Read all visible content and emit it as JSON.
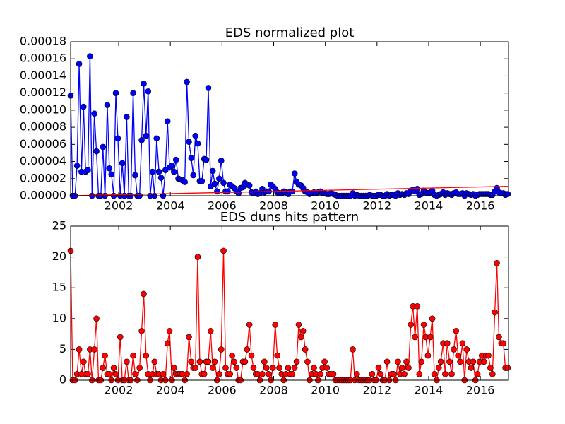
{
  "chart_data": [
    {
      "type": "line",
      "title": "EDS normalized plot",
      "x": [
        2000.14,
        2000.22,
        2000.31,
        2000.39,
        2000.47,
        2000.56,
        2000.64,
        2000.72,
        2000.81,
        2000.89,
        2000.97,
        2001.06,
        2001.14,
        2001.22,
        2001.31,
        2001.39,
        2001.47,
        2001.56,
        2001.64,
        2001.72,
        2001.81,
        2001.89,
        2001.97,
        2002.06,
        2002.14,
        2002.22,
        2002.31,
        2002.39,
        2002.47,
        2002.56,
        2002.64,
        2002.72,
        2002.81,
        2002.89,
        2002.97,
        2003.06,
        2003.14,
        2003.22,
        2003.31,
        2003.39,
        2003.47,
        2003.56,
        2003.64,
        2003.72,
        2003.81,
        2003.89,
        2003.97,
        2004.06,
        2004.14,
        2004.22,
        2004.31,
        2004.39,
        2004.47,
        2004.56,
        2004.64,
        2004.72,
        2004.81,
        2004.89,
        2004.97,
        2005.06,
        2005.14,
        2005.22,
        2005.31,
        2005.39,
        2005.47,
        2005.56,
        2005.64,
        2005.72,
        2005.81,
        2005.89,
        2005.97,
        2006.06,
        2006.14,
        2006.22,
        2006.31,
        2006.39,
        2006.47,
        2006.56,
        2006.64,
        2006.72,
        2006.81,
        2006.89,
        2006.97,
        2007.06,
        2007.14,
        2007.22,
        2007.31,
        2007.39,
        2007.47,
        2007.56,
        2007.64,
        2007.72,
        2007.81,
        2007.89,
        2007.97,
        2008.06,
        2008.14,
        2008.22,
        2008.31,
        2008.39,
        2008.47,
        2008.56,
        2008.64,
        2008.72,
        2008.81,
        2008.89,
        2008.97,
        2009.06,
        2009.14,
        2009.22,
        2009.31,
        2009.39,
        2009.47,
        2009.56,
        2009.64,
        2009.72,
        2009.81,
        2009.89,
        2009.97,
        2010.06,
        2010.14,
        2010.22,
        2010.31,
        2010.39,
        2010.47,
        2010.56,
        2010.64,
        2010.72,
        2010.81,
        2010.89,
        2010.97,
        2011.06,
        2011.14,
        2011.22,
        2011.31,
        2011.39,
        2011.47,
        2011.56,
        2011.64,
        2011.72,
        2011.81,
        2011.89,
        2011.97,
        2012.06,
        2012.14,
        2012.22,
        2012.31,
        2012.39,
        2012.47,
        2012.56,
        2012.64,
        2012.72,
        2012.81,
        2012.89,
        2012.97,
        2013.06,
        2013.14,
        2013.22,
        2013.31,
        2013.39,
        2013.47,
        2013.56,
        2013.64,
        2013.72,
        2013.81,
        2013.89,
        2013.97,
        2014.06,
        2014.14,
        2014.22,
        2014.31,
        2014.39,
        2014.47,
        2014.56,
        2014.64,
        2014.72,
        2014.81,
        2014.89,
        2014.97,
        2015.06,
        2015.14,
        2015.22,
        2015.31,
        2015.39,
        2015.47,
        2015.56,
        2015.64,
        2015.72,
        2015.81,
        2015.89,
        2015.97,
        2016.06,
        2016.14,
        2016.22,
        2016.31,
        2016.39,
        2016.47,
        2016.56,
        2016.64,
        2016.72,
        2016.81,
        2016.89,
        2016.97,
        2017.06
      ],
      "xlim": [
        2000.14,
        2017.09
      ],
      "xticks": [
        2002,
        2004,
        2006,
        2008,
        2010,
        2012,
        2014,
        2016
      ],
      "ylim": [
        0,
        0.00018
      ],
      "yticks": [
        {
          "value": 0,
          "label": "0.00000"
        },
        {
          "value": 2e-05,
          "label": "0.00002"
        },
        {
          "value": 4e-05,
          "label": "0.00004"
        },
        {
          "value": 6e-05,
          "label": "0.00006"
        },
        {
          "value": 8e-05,
          "label": "0.00008"
        },
        {
          "value": 0.0001,
          "label": "0.00010"
        },
        {
          "value": 0.00012,
          "label": "0.00012"
        },
        {
          "value": 0.00014,
          "label": "0.00014"
        },
        {
          "value": 0.00016,
          "label": "0.00016"
        },
        {
          "value": 0.00018,
          "label": "0.00018"
        }
      ],
      "series": [
        {
          "color": "#0000ff",
          "marker": true,
          "values": [
            0.000117,
            0,
            0,
            3.5e-05,
            0.000154,
            2.8e-05,
            0.000104,
            2.8e-05,
            3e-05,
            0.000163,
            0,
            9.6e-05,
            5.2e-05,
            0,
            0,
            5.7e-05,
            0,
            0.000106,
            3.2e-05,
            2.5e-05,
            0,
            0.00012,
            6.7e-05,
            0,
            3.8e-05,
            0,
            9.2e-05,
            0,
            0,
            0.00012,
            2.4e-05,
            0,
            0,
            6.5e-05,
            0.000131,
            7e-05,
            0.000122,
            0,
            2.8e-05,
            0,
            6.7e-05,
            2.8e-05,
            2.1e-05,
            0,
            3e-05,
            8.7e-05,
            3.3e-05,
            3.5e-05,
            2.8e-05,
            4.2e-05,
            2e-05,
            1.9e-05,
            1.8e-05,
            1.6e-05,
            0.000133,
            6.3e-05,
            4.4e-05,
            2.4e-05,
            7e-05,
            6.1e-05,
            1.7e-05,
            1.7e-05,
            4.3e-05,
            4.2e-05,
            0.000126,
            1.1e-05,
            2.9e-05,
            1.4e-05,
            5e-06,
            2e-05,
            4.1e-05,
            1.5e-05,
            5e-06,
            5e-06,
            1.3e-05,
            1.1e-05,
            9e-06,
            5e-06,
            3e-06,
            9e-06,
            1e-05,
            1.5e-05,
            1.3e-05,
            1.2e-05,
            4e-06,
            3e-06,
            5e-06,
            2e-06,
            3e-06,
            8e-06,
            4e-06,
            5e-06,
            5e-06,
            1.3e-05,
            1.1e-05,
            8e-06,
            4e-06,
            3e-06,
            3e-06,
            5e-06,
            4e-06,
            2e-06,
            5e-06,
            5e-06,
            2.6e-05,
            1.6e-05,
            1.3e-05,
            1.2e-05,
            9e-06,
            5e-06,
            4e-06,
            2e-06,
            3e-06,
            4e-06,
            3e-06,
            4e-06,
            5e-06,
            3e-06,
            3e-06,
            2e-06,
            2e-06,
            3e-06,
            2e-06,
            1e-06,
            0,
            0,
            0,
            0,
            0,
            0,
            0,
            3e-06,
            0,
            1e-06,
            0,
            0,
            0,
            0,
            0,
            1e-06,
            0,
            0,
            0,
            1e-06,
            1e-06,
            0,
            0,
            2e-06,
            0,
            1e-06,
            1e-06,
            0,
            3e-06,
            1e-06,
            2e-06,
            1e-06,
            3e-06,
            2e-06,
            6e-06,
            7e-06,
            5e-06,
            8e-06,
            1e-06,
            2e-06,
            6e-06,
            4e-06,
            3e-06,
            4e-06,
            6e-06,
            1e-06,
            0,
            1e-06,
            2e-06,
            4e-06,
            1e-06,
            3e-06,
            2e-06,
            1e-06,
            3e-06,
            4e-06,
            2e-06,
            2e-06,
            3e-06,
            0,
            3e-06,
            2e-06,
            1e-06,
            2e-06,
            0,
            1e-06,
            2e-06,
            2e-06,
            2e-06,
            2e-06,
            2e-06,
            1e-06,
            1e-06,
            5e-06,
            9e-06,
            4e-06,
            3e-06,
            3e-06,
            1e-06,
            2e-06
          ]
        },
        {
          "color": "#ff0000",
          "marker": false,
          "x": [
            2000.14,
            2017.09
          ],
          "values": [
            0,
            1.1e-05
          ]
        }
      ]
    },
    {
      "type": "line",
      "title": "EDS duns hits pattern",
      "x": [
        2000.14,
        2000.22,
        2000.31,
        2000.39,
        2000.47,
        2000.56,
        2000.64,
        2000.72,
        2000.81,
        2000.89,
        2000.97,
        2001.06,
        2001.14,
        2001.22,
        2001.31,
        2001.39,
        2001.47,
        2001.56,
        2001.64,
        2001.72,
        2001.81,
        2001.89,
        2001.97,
        2002.06,
        2002.14,
        2002.22,
        2002.31,
        2002.39,
        2002.47,
        2002.56,
        2002.64,
        2002.72,
        2002.81,
        2002.89,
        2002.97,
        2003.06,
        2003.14,
        2003.22,
        2003.31,
        2003.39,
        2003.47,
        2003.56,
        2003.64,
        2003.72,
        2003.81,
        2003.89,
        2003.97,
        2004.06,
        2004.14,
        2004.22,
        2004.31,
        2004.39,
        2004.47,
        2004.56,
        2004.64,
        2004.72,
        2004.81,
        2004.89,
        2004.97,
        2005.06,
        2005.14,
        2005.22,
        2005.31,
        2005.39,
        2005.47,
        2005.56,
        2005.64,
        2005.72,
        2005.81,
        2005.89,
        2005.97,
        2006.06,
        2006.14,
        2006.22,
        2006.31,
        2006.39,
        2006.47,
        2006.56,
        2006.64,
        2006.72,
        2006.81,
        2006.89,
        2006.97,
        2007.06,
        2007.14,
        2007.22,
        2007.31,
        2007.39,
        2007.47,
        2007.56,
        2007.64,
        2007.72,
        2007.81,
        2007.89,
        2007.97,
        2008.06,
        2008.14,
        2008.22,
        2008.31,
        2008.39,
        2008.47,
        2008.56,
        2008.64,
        2008.72,
        2008.81,
        2008.89,
        2008.97,
        2009.06,
        2009.14,
        2009.22,
        2009.31,
        2009.39,
        2009.47,
        2009.56,
        2009.64,
        2009.72,
        2009.81,
        2009.89,
        2009.97,
        2010.06,
        2010.14,
        2010.22,
        2010.31,
        2010.39,
        2010.47,
        2010.56,
        2010.64,
        2010.72,
        2010.81,
        2010.89,
        2010.97,
        2011.06,
        2011.14,
        2011.22,
        2011.31,
        2011.39,
        2011.47,
        2011.56,
        2011.64,
        2011.72,
        2011.81,
        2011.89,
        2011.97,
        2012.06,
        2012.14,
        2012.22,
        2012.31,
        2012.39,
        2012.47,
        2012.56,
        2012.64,
        2012.72,
        2012.81,
        2012.89,
        2012.97,
        2013.06,
        2013.14,
        2013.22,
        2013.31,
        2013.39,
        2013.47,
        2013.56,
        2013.64,
        2013.72,
        2013.81,
        2013.89,
        2013.97,
        2014.06,
        2014.14,
        2014.22,
        2014.31,
        2014.39,
        2014.47,
        2014.56,
        2014.64,
        2014.72,
        2014.81,
        2014.89,
        2014.97,
        2015.06,
        2015.14,
        2015.22,
        2015.31,
        2015.39,
        2015.47,
        2015.56,
        2015.64,
        2015.72,
        2015.81,
        2015.89,
        2015.97,
        2016.06,
        2016.14,
        2016.22,
        2016.31,
        2016.39,
        2016.47,
        2016.56,
        2016.64,
        2016.72,
        2016.81,
        2016.89,
        2016.97,
        2017.06
      ],
      "xlim": [
        2000.14,
        2017.09
      ],
      "xticks": [
        2002,
        2004,
        2006,
        2008,
        2010,
        2012,
        2014,
        2016
      ],
      "ylim": [
        0,
        25
      ],
      "yticks": [
        0,
        5,
        10,
        15,
        20,
        25
      ],
      "series": [
        {
          "color": "#ff0000",
          "marker": true,
          "values": [
            21,
            0,
            0,
            1,
            5,
            1,
            3,
            1,
            1,
            5,
            0,
            5,
            10,
            0,
            0,
            2,
            4,
            1,
            1,
            0,
            2,
            1,
            0,
            7,
            0,
            0,
            3,
            0,
            0,
            4,
            1,
            0,
            2,
            8,
            14,
            4,
            1,
            0,
            1,
            3,
            1,
            1,
            0,
            1,
            0,
            6,
            8,
            0,
            2,
            1,
            1,
            1,
            1,
            0,
            1,
            7,
            3,
            2,
            2,
            20,
            3,
            1,
            1,
            3,
            3,
            8,
            2,
            3,
            0,
            1,
            5,
            21,
            2,
            1,
            1,
            4,
            3,
            2,
            0,
            0,
            3,
            3,
            5,
            9,
            4,
            2,
            1,
            1,
            0,
            1,
            3,
            2,
            1,
            0,
            2,
            9,
            4,
            2,
            1,
            0,
            1,
            2,
            1,
            1,
            2,
            3,
            9,
            7,
            8,
            5,
            3,
            0,
            1,
            2,
            1,
            0,
            1,
            2,
            3,
            2,
            1,
            1,
            1,
            0,
            0,
            0,
            0,
            0,
            0,
            0,
            0,
            5,
            0,
            1,
            0,
            0,
            0,
            0,
            0,
            0,
            1,
            0,
            0,
            2,
            1,
            0,
            0,
            3,
            0,
            1,
            1,
            0,
            3,
            1,
            2,
            1,
            3,
            2,
            9,
            12,
            7,
            12,
            1,
            3,
            9,
            7,
            4,
            7,
            10,
            1,
            0,
            2,
            3,
            6,
            1,
            6,
            3,
            1,
            5,
            8,
            4,
            3,
            6,
            0,
            5,
            3,
            2,
            3,
            0,
            1,
            3,
            4,
            3,
            4,
            4,
            2,
            1,
            11,
            19,
            7,
            6,
            6,
            2,
            2
          ]
        }
      ]
    }
  ]
}
